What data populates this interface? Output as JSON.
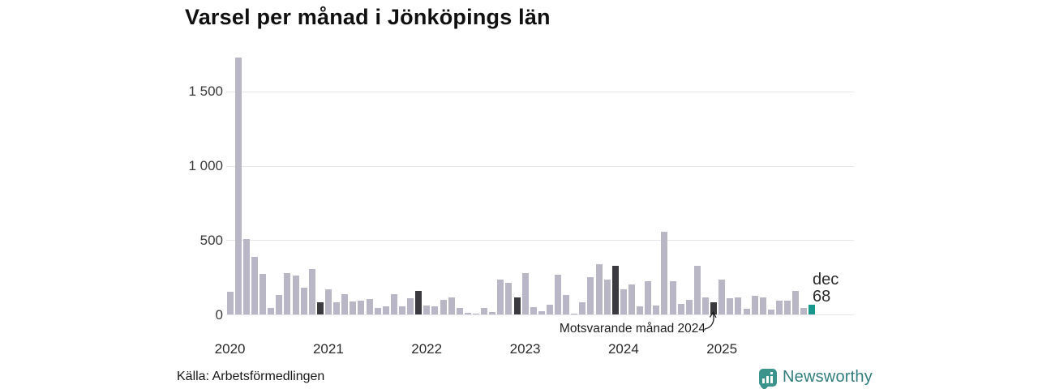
{
  "title": "Varsel per månad i Jönköpings län",
  "source": "Källa: Arbetsförmedlingen",
  "branding": {
    "name": "Newsworthy",
    "icon": "newsworthy-chart-bubble-icon"
  },
  "annotation": {
    "text": "Motsvarande månad 2024"
  },
  "current_label": {
    "line1": "dec",
    "line2": "68"
  },
  "colors": {
    "bar_default": "#b9b6c5",
    "bar_december": "#3b3a3e",
    "bar_current": "#17988a",
    "gridline": "#e6e5ec",
    "brand_teal": "#3a948c"
  },
  "chart_data": {
    "type": "bar",
    "title": "Varsel per månad i Jönköpings län",
    "xlabel": "",
    "ylabel": "",
    "ylim": [
      0,
      1780
    ],
    "grid": "on",
    "legend": "off",
    "yticks": [
      {
        "value": 0,
        "label": "0"
      },
      {
        "value": 500,
        "label": "500"
      },
      {
        "value": 1000,
        "label": "1 000"
      },
      {
        "value": 1500,
        "label": "1 500"
      }
    ],
    "year_ticks": [
      "2020",
      "2021",
      "2022",
      "2023",
      "2024",
      "2025"
    ],
    "months": [
      "2020-01",
      "2020-02",
      "2020-03",
      "2020-04",
      "2020-05",
      "2020-06",
      "2020-07",
      "2020-08",
      "2020-09",
      "2020-10",
      "2020-11",
      "2020-12",
      "2021-01",
      "2021-02",
      "2021-03",
      "2021-04",
      "2021-05",
      "2021-06",
      "2021-07",
      "2021-08",
      "2021-09",
      "2021-10",
      "2021-11",
      "2021-12",
      "2022-01",
      "2022-02",
      "2022-03",
      "2022-04",
      "2022-05",
      "2022-06",
      "2022-07",
      "2022-08",
      "2022-09",
      "2022-10",
      "2022-11",
      "2022-12",
      "2023-01",
      "2023-02",
      "2023-03",
      "2023-04",
      "2023-05",
      "2023-06",
      "2023-07",
      "2023-08",
      "2023-09",
      "2023-10",
      "2023-11",
      "2023-12",
      "2024-01",
      "2024-02",
      "2024-03",
      "2024-04",
      "2024-05",
      "2024-06",
      "2024-07",
      "2024-08",
      "2024-09",
      "2024-10",
      "2024-11",
      "2024-12",
      "2025-01",
      "2025-02",
      "2025-03",
      "2025-04",
      "2025-05",
      "2025-06",
      "2025-07",
      "2025-08",
      "2025-09",
      "2025-10",
      "2025-11",
      "2025-12"
    ],
    "values": [
      153,
      1731,
      507,
      389,
      271,
      45,
      131,
      276,
      260,
      180,
      307,
      80,
      167,
      80,
      138,
      89,
      95,
      102,
      44,
      53,
      134,
      56,
      107,
      156,
      58,
      53,
      98,
      113,
      44,
      10,
      5,
      44,
      16,
      233,
      211,
      116,
      280,
      49,
      20,
      65,
      265,
      129,
      7,
      84,
      253,
      340,
      235,
      325,
      171,
      203,
      53,
      225,
      58,
      558,
      225,
      71,
      98,
      329,
      116,
      80,
      234,
      107,
      116,
      40,
      125,
      113,
      35,
      93,
      93,
      156,
      44,
      68
    ],
    "highlight": {
      "december_indices": [
        11,
        23,
        35,
        47,
        59
      ],
      "current_index": 71,
      "current_value_label": "dec 68",
      "annotation_target": "2024-12",
      "annotation_text": "Motsvarande månad 2024"
    }
  }
}
